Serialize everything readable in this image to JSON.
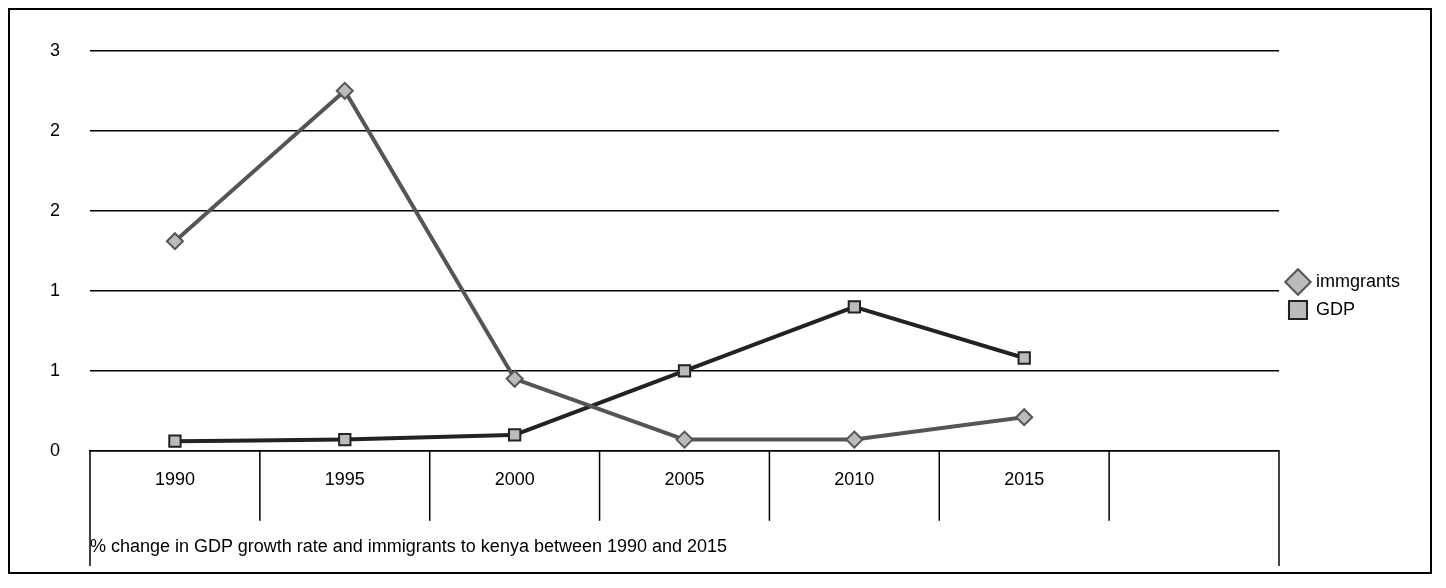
{
  "chart_data": {
    "type": "line",
    "xlabel": "% change in GDP growth rate and immigrants to kenya between 1990 and 2015",
    "categories": [
      "1990",
      "1995",
      "2000",
      "2005",
      "2010",
      "2015",
      null
    ],
    "series": [
      {
        "name": "immgrants",
        "color": "#555555",
        "marker": "diamond",
        "values": [
          1.31,
          2.25,
          0.45,
          0.07,
          0.07,
          0.21,
          null
        ]
      },
      {
        "name": "GDP",
        "color": "#222222",
        "marker": "square",
        "values": [
          0.06,
          0.07,
          0.1,
          0.5,
          0.9,
          0.58,
          null
        ]
      }
    ],
    "ylim": [
      0,
      2.5
    ],
    "yticks": [
      {
        "value": 0,
        "label": "0"
      },
      {
        "value": 0.5,
        "label": "1"
      },
      {
        "value": 1,
        "label": "1"
      },
      {
        "value": 1.5,
        "label": "2"
      },
      {
        "value": 2,
        "label": "2"
      },
      {
        "value": 2.5,
        "label": "3"
      }
    ],
    "grid": "y",
    "legend": "right",
    "line_style": "solid"
  }
}
